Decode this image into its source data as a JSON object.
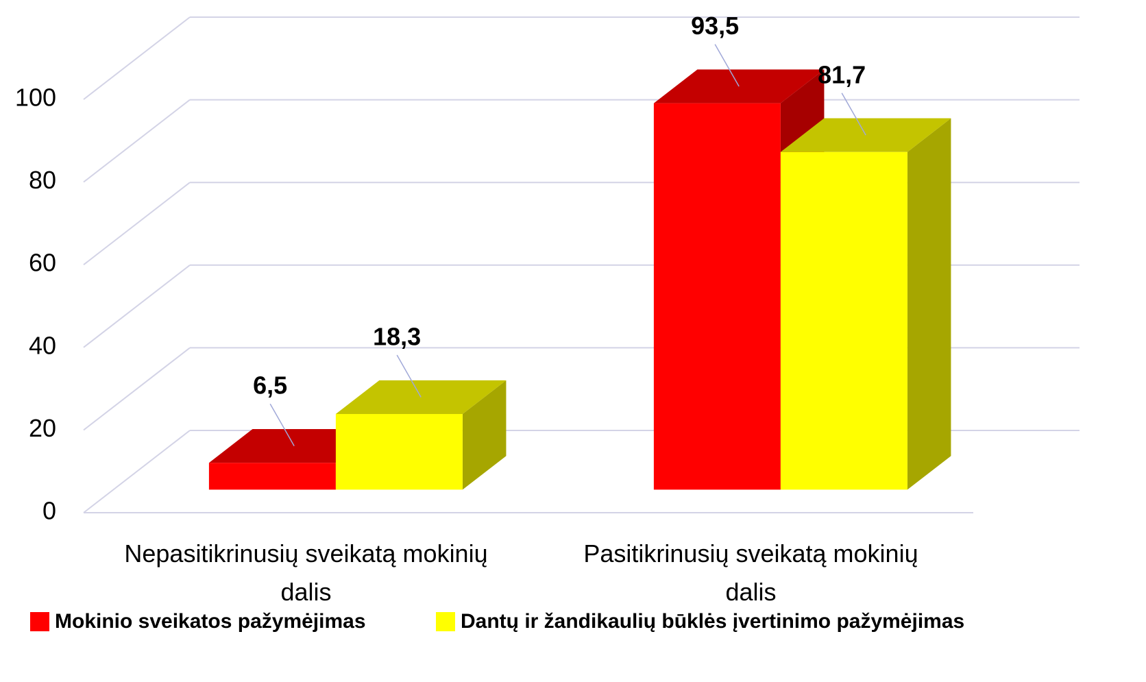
{
  "chart_data": {
    "type": "bar3d",
    "categories": [
      "Nepasitikrinusių sveikatą mokinių dalis",
      "Pasitikrinusių sveikatą mokinių dalis"
    ],
    "series": [
      {
        "name": "Mokinio sveikatos pažymėjimas",
        "color": "#ff0000",
        "values": [
          6.5,
          93.5
        ],
        "value_labels": [
          "6,5",
          "93,5"
        ]
      },
      {
        "name": "Dantų ir žandikaulių būklės įvertinimo pažymėjimas",
        "color": "#ffff00",
        "values": [
          18.3,
          81.7
        ],
        "value_labels": [
          "18,3",
          "81,7"
        ]
      }
    ],
    "ylim": [
      0,
      100
    ],
    "yticks": [
      0,
      20,
      40,
      60,
      80,
      100
    ],
    "grid": true,
    "legend": "bottom"
  }
}
